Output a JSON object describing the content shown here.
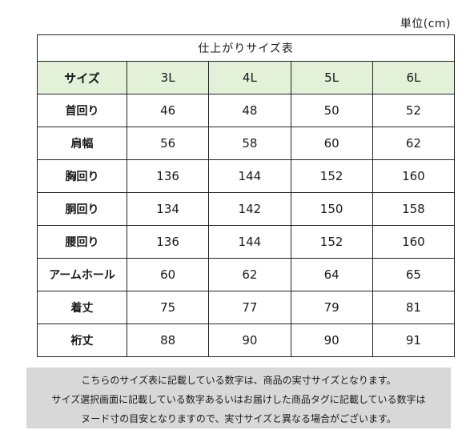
{
  "unit": "単位(cm)",
  "table": {
    "caption": "仕上がりサイズ表",
    "corner_label": "サイズ",
    "sizes": [
      "3L",
      "4L",
      "5L",
      "6L"
    ],
    "rows": [
      {
        "label": "首回り",
        "values": [
          "46",
          "48",
          "50",
          "52"
        ]
      },
      {
        "label": "肩幅",
        "values": [
          "56",
          "58",
          "60",
          "62"
        ]
      },
      {
        "label": "胸回り",
        "values": [
          "136",
          "144",
          "152",
          "160"
        ]
      },
      {
        "label": "胴回り",
        "values": [
          "134",
          "142",
          "150",
          "158"
        ]
      },
      {
        "label": "腰回り",
        "values": [
          "136",
          "144",
          "152",
          "160"
        ]
      },
      {
        "label": "アームホール",
        "values": [
          "60",
          "62",
          "64",
          "65"
        ]
      },
      {
        "label": "着丈",
        "values": [
          "75",
          "77",
          "79",
          "81"
        ]
      },
      {
        "label": "裄丈",
        "values": [
          "88",
          "90",
          "90",
          "91"
        ]
      }
    ]
  },
  "notes": [
    "こちらのサイズ表に記載している数字は、商品の実寸サイズとなります。",
    "サイズ選択画面に記載している数字あるいはお届けした商品タグに記載している数字は",
    "ヌード寸の目安となりますので、実寸サイズと異なる場合がございます。"
  ],
  "colors": {
    "header_bg": "#e3f1d9",
    "notes_bg": "#d8d8d8",
    "border": "#222222"
  }
}
